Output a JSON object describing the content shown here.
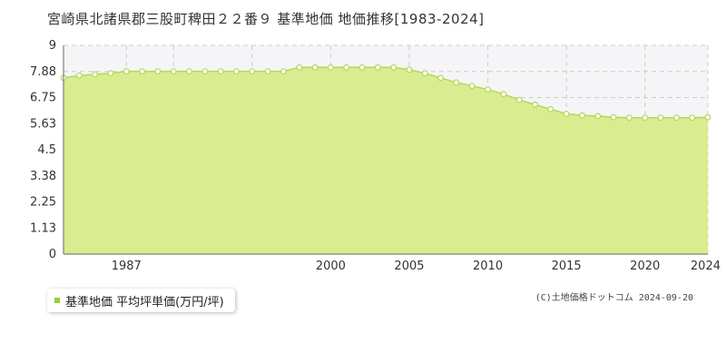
{
  "header": {
    "title": "宮崎県北諸県郡三股町稗田２２番９ 基準地価 地価推移[1983-2024]"
  },
  "legend": {
    "label": "基準地価 平均坪単価(万円/坪)"
  },
  "credit": "(C)土地価格ドットコム 2024-09-20",
  "colors": {
    "area_fill": "#d9ec8f",
    "line": "#b5d85a",
    "marker_stroke": "#b5d85a",
    "marker_fill": "#ffffff",
    "upper_band": "#f5f5f7",
    "grid": "#cccccc",
    "legend_swatch": "#9acd32"
  },
  "chart_data": {
    "type": "area",
    "x": [
      1983,
      1984,
      1985,
      1986,
      1987,
      1988,
      1989,
      1990,
      1991,
      1992,
      1993,
      1994,
      1995,
      1996,
      1997,
      1998,
      1999,
      2000,
      2001,
      2002,
      2003,
      2004,
      2005,
      2006,
      2007,
      2008,
      2009,
      2010,
      2011,
      2012,
      2013,
      2014,
      2015,
      2016,
      2017,
      2018,
      2019,
      2020,
      2021,
      2022,
      2023,
      2024
    ],
    "series": [
      {
        "name": "基準地価 平均坪単価(万円/坪)",
        "values": [
          7.6,
          7.7,
          7.75,
          7.8,
          7.88,
          7.88,
          7.88,
          7.88,
          7.88,
          7.88,
          7.88,
          7.88,
          7.88,
          7.88,
          7.88,
          8.05,
          8.05,
          8.05,
          8.05,
          8.05,
          8.05,
          8.05,
          7.95,
          7.8,
          7.6,
          7.4,
          7.25,
          7.1,
          6.9,
          6.65,
          6.45,
          6.25,
          6.05,
          5.98,
          5.95,
          5.9,
          5.88,
          5.88,
          5.88,
          5.88,
          5.88,
          5.9
        ]
      }
    ],
    "xlabel": "",
    "ylabel": "",
    "ylim": [
      0,
      9
    ],
    "xlim": [
      1983,
      2024
    ],
    "y_ticks": [
      "0",
      "1.13",
      "2.25",
      "3.38",
      "4.5",
      "5.63",
      "6.75",
      "7.88",
      "9"
    ],
    "y_tick_values": [
      0,
      1.125,
      2.25,
      3.375,
      4.5,
      5.625,
      6.75,
      7.875,
      9
    ],
    "x_ticks": [
      "1987",
      "2000",
      "2005",
      "2010",
      "2015",
      "2020",
      "2024"
    ],
    "x_tick_values": [
      1987,
      2000,
      2005,
      2010,
      2015,
      2020,
      2024
    ],
    "x_minor_ticks": [
      1990,
      1995
    ],
    "grid": true,
    "legend_position": "bottom-left"
  }
}
